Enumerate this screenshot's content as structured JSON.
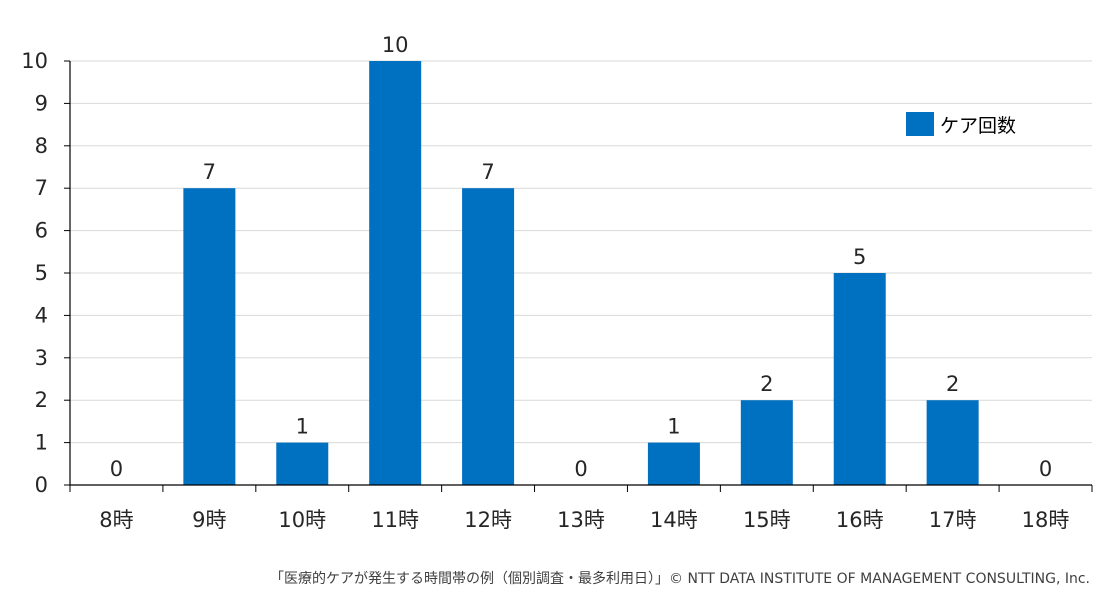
{
  "chart_data": {
    "type": "bar",
    "categories": [
      "8時",
      "9時",
      "10時",
      "11時",
      "12時",
      "13時",
      "14時",
      "15時",
      "16時",
      "17時",
      "18時"
    ],
    "series": [
      {
        "name": "ケア回数",
        "values": [
          0,
          7,
          1,
          10,
          7,
          0,
          1,
          2,
          5,
          2,
          0
        ],
        "color": "#0070C0"
      }
    ],
    "ylim": [
      0,
      10
    ],
    "yticks": [
      0,
      1,
      2,
      3,
      4,
      5,
      6,
      7,
      8,
      9,
      10
    ],
    "grid": true,
    "legend_position": "top-right",
    "data_labels": true
  },
  "caption": "「医療的ケアが発生する時間帯の例（個別調査・最多利用日）」© NTT DATA INSTITUTE OF MANAGEMENT CONSULTING, Inc."
}
